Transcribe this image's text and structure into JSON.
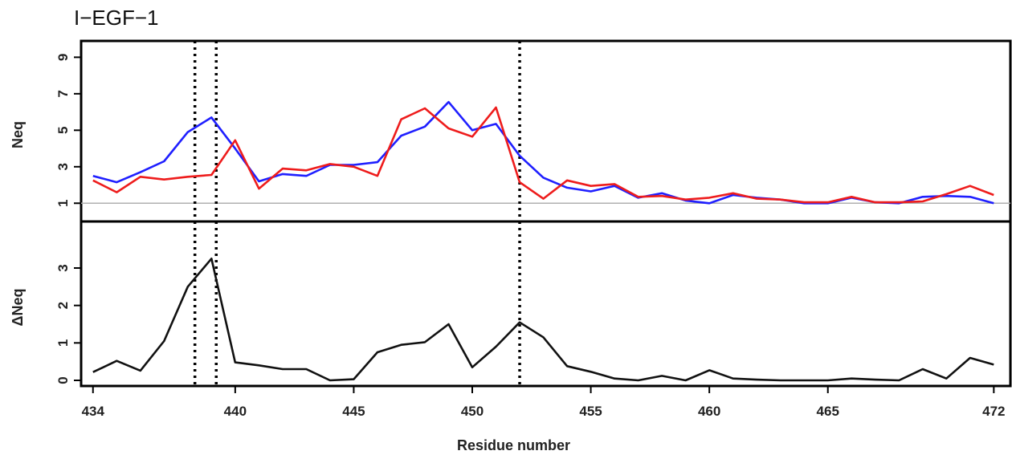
{
  "chart_data": {
    "type": "line",
    "title": "I−EGF−1",
    "xlabel": "Residue number",
    "x_ticks": [
      434,
      440,
      445,
      450,
      455,
      460,
      465,
      472
    ],
    "x_tick_labels": [
      "434",
      "440",
      "445",
      "450",
      "455",
      "460",
      "465",
      "472"
    ],
    "xlim": [
      433.5,
      472.7
    ],
    "grid": false,
    "legend": "none",
    "vertical_markers": [
      438.3,
      439.2,
      452
    ],
    "panels": [
      {
        "ylabel": "Neq",
        "ylim": [
          0,
          9.5
        ],
        "y_ticks": [
          1,
          3,
          5,
          7,
          9
        ],
        "y_tick_labels": [
          "1",
          "3",
          "5",
          "7",
          "9"
        ],
        "reference_line": 1,
        "series": [
          {
            "color": "#1f1fff",
            "x": [
              434,
              435,
              436,
              437,
              438,
              439,
              440,
              441,
              442,
              443,
              444,
              445,
              446,
              447,
              448,
              449,
              450,
              451,
              452,
              453,
              454,
              455,
              456,
              457,
              458,
              459,
              460,
              461,
              462,
              463,
              464,
              465,
              466,
              467,
              468,
              469,
              470,
              471,
              472
            ],
            "values": [
              2.5,
              2.15,
              2.7,
              3.3,
              4.9,
              5.7,
              4.0,
              2.2,
              2.6,
              2.5,
              3.1,
              3.1,
              3.25,
              4.7,
              5.2,
              6.55,
              5.0,
              5.35,
              3.6,
              2.4,
              1.85,
              1.65,
              1.95,
              1.3,
              1.55,
              1.15,
              1.0,
              1.45,
              1.3,
              1.2,
              1.0,
              1.0,
              1.3,
              1.05,
              1.0,
              1.35,
              1.4,
              1.35,
              1.0
            ]
          },
          {
            "color": "#ee1c1c",
            "x": [
              434,
              435,
              436,
              437,
              438,
              439,
              440,
              441,
              442,
              443,
              444,
              445,
              446,
              447,
              448,
              449,
              450,
              451,
              452,
              453,
              454,
              455,
              456,
              457,
              458,
              459,
              460,
              461,
              462,
              463,
              464,
              465,
              466,
              467,
              468,
              469,
              470,
              471,
              472
            ],
            "values": [
              2.25,
              1.6,
              2.45,
              2.3,
              2.45,
              2.55,
              4.45,
              1.8,
              2.9,
              2.8,
              3.15,
              3.0,
              2.5,
              5.6,
              6.2,
              5.1,
              4.65,
              6.25,
              2.15,
              1.25,
              2.25,
              1.95,
              2.05,
              1.35,
              1.4,
              1.2,
              1.3,
              1.55,
              1.25,
              1.2,
              1.05,
              1.05,
              1.35,
              1.05,
              1.05,
              1.1,
              1.5,
              1.95,
              1.45
            ]
          }
        ]
      },
      {
        "ylabel": "ΔNeq",
        "ylim": [
          -0.15,
          4.05
        ],
        "y_ticks": [
          0,
          1,
          2,
          3
        ],
        "y_tick_labels": [
          "0",
          "1",
          "2",
          "3"
        ],
        "series": [
          {
            "color": "#111111",
            "x": [
              434,
              435,
              436,
              437,
              438,
              439,
              440,
              441,
              442,
              443,
              444,
              445,
              446,
              447,
              448,
              449,
              450,
              451,
              452,
              453,
              454,
              455,
              456,
              457,
              458,
              459,
              460,
              461,
              462,
              463,
              464,
              465,
              466,
              467,
              468,
              469,
              470,
              471,
              472
            ],
            "values": [
              0.22,
              0.52,
              0.26,
              1.05,
              2.5,
              3.25,
              0.48,
              0.4,
              0.3,
              0.3,
              0.0,
              0.03,
              0.75,
              0.95,
              1.02,
              1.5,
              0.35,
              0.9,
              1.55,
              1.15,
              0.38,
              0.23,
              0.05,
              0.0,
              0.12,
              0.0,
              0.27,
              0.05,
              0.02,
              0.0,
              0.0,
              0.0,
              0.05,
              0.02,
              0.0,
              0.3,
              0.05,
              0.6,
              0.42
            ]
          }
        ]
      }
    ]
  }
}
